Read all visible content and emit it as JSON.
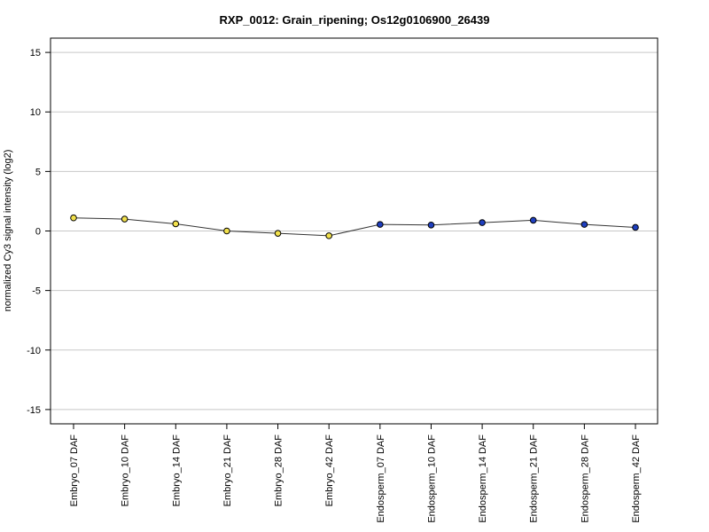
{
  "chart_data": {
    "type": "line",
    "title": "RXP_0012: Grain_ripening; Os12g0106900_26439",
    "xlabel": "",
    "ylabel": "normalized Cy3 signal intensity (log2)",
    "ylim": [
      -16.2,
      16.2
    ],
    "yticks": [
      -15,
      -10,
      -5,
      0,
      5,
      10,
      15
    ],
    "grid": true,
    "categories": [
      "Embryo_07 DAF",
      "Embryo_10 DAF",
      "Embryo_14 DAF",
      "Embryo_21 DAF",
      "Embryo_28 DAF",
      "Embryo_42 DAF",
      "Endosperm_07 DAF",
      "Endosperm_10 DAF",
      "Endosperm_14 DAF",
      "Endosperm_21 DAF",
      "Endosperm_28 DAF",
      "Endosperm_42 DAF"
    ],
    "values": [
      1.1,
      1.0,
      0.6,
      0.0,
      -0.2,
      -0.4,
      0.55,
      0.5,
      0.7,
      0.9,
      0.55,
      0.3
    ],
    "point_colors": [
      "#f2e14c",
      "#f2e14c",
      "#f2e14c",
      "#f2e14c",
      "#f2e14c",
      "#f2e14c",
      "#1f3fbf",
      "#1f3fbf",
      "#1f3fbf",
      "#1f3fbf",
      "#1f3fbf",
      "#1f3fbf"
    ],
    "line_color": "#333333",
    "grid_color": "#c8c8c8"
  }
}
